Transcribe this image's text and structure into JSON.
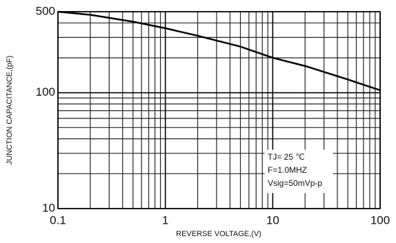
{
  "chart_data": {
    "type": "line",
    "xlabel": "REVERSE VOLTAGE,(V)",
    "ylabel": "JUNCTION CAPACITANCE,(pF)",
    "x": [
      0.1,
      0.2,
      0.5,
      1,
      2,
      5,
      10,
      20,
      50,
      100
    ],
    "series": [
      {
        "color": "#000000",
        "values": [
          500,
          470,
          410,
          360,
          310,
          250,
          200,
          170,
          130,
          105
        ]
      }
    ],
    "xlim": [
      0.1,
      100
    ],
    "ylim": [
      10,
      500
    ],
    "xlog": true,
    "ylog": true,
    "xticks": [
      0.1,
      1,
      10,
      100
    ],
    "yticks": [
      10,
      100,
      500
    ],
    "xgrid": [
      0.2,
      0.3,
      0.4,
      0.5,
      0.6,
      0.7,
      0.8,
      0.9,
      2,
      3,
      4,
      5,
      6,
      7,
      8,
      9,
      20,
      30,
      40,
      50,
      60,
      70,
      80,
      90
    ],
    "ygrid": [
      20,
      30,
      40,
      50,
      60,
      70,
      80,
      90,
      200,
      300,
      400
    ],
    "annotation": [
      "TJ= 25 ℃",
      "F=1.0MHZ",
      "Vsig=50mVp-p"
    ]
  }
}
